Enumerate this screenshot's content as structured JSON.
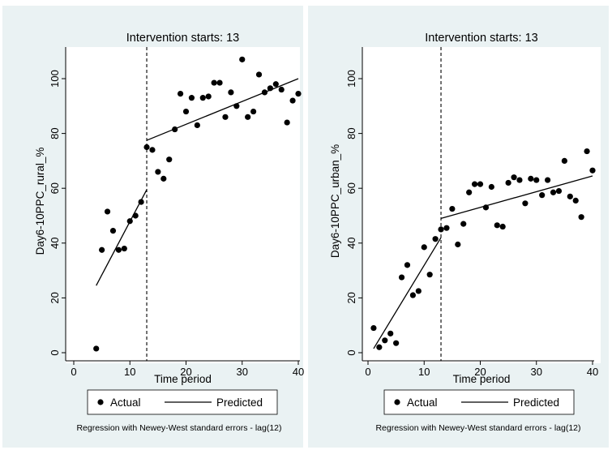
{
  "colors": {
    "background": "#eaf2f3",
    "plot_area": "#ffffff",
    "ink": "#000000"
  },
  "chart_data": [
    {
      "type": "scatter",
      "title": "Intervention starts: 13",
      "xlabel": "Time period",
      "ylabel": "Day6-10PPC_rural_%",
      "xlim": [
        0,
        40
      ],
      "ylim": [
        0,
        110
      ],
      "xticks": [
        0,
        10,
        20,
        30,
        40
      ],
      "yticks": [
        0,
        20,
        40,
        60,
        80,
        100
      ],
      "grid": false,
      "intervention_x": 13,
      "legend": {
        "placement": "bottom",
        "items": [
          "Actual",
          "Predicted"
        ]
      },
      "note": "Regression with Newey-West standard errors - lag(12)",
      "series": [
        {
          "name": "Actual",
          "kind": "points",
          "x": [
            4,
            5,
            6,
            7,
            8,
            9,
            10,
            11,
            12,
            13,
            14,
            15,
            16,
            17,
            18,
            19,
            20,
            21,
            22,
            23,
            24,
            25,
            26,
            27,
            28,
            29,
            30,
            31,
            32,
            33,
            34,
            35,
            36,
            37,
            38,
            39,
            40
          ],
          "y": [
            1.5,
            37.5,
            51.5,
            44.5,
            37.5,
            38,
            48,
            50,
            55,
            75,
            74,
            66,
            63.5,
            70.5,
            81.5,
            94.5,
            88,
            93,
            83,
            93,
            93.5,
            98.5,
            98.5,
            86,
            95,
            90,
            107,
            86,
            88,
            101.5,
            95,
            96.5,
            98,
            96,
            84,
            92,
            94.5
          ]
        },
        {
          "name": "Predicted",
          "kind": "segments",
          "segments": [
            {
              "x": [
                4,
                13
              ],
              "y": [
                24.5,
                59.5
              ]
            },
            {
              "x": [
                13,
                40
              ],
              "y": [
                77.5,
                100
              ]
            }
          ]
        }
      ]
    },
    {
      "type": "scatter",
      "title": "Intervention starts: 13",
      "xlabel": "Time period",
      "ylabel": "Day6-10PPC_urban_%",
      "xlim": [
        0,
        40
      ],
      "ylim": [
        0,
        110
      ],
      "xticks": [
        0,
        10,
        20,
        30,
        40
      ],
      "yticks": [
        0,
        20,
        40,
        60,
        80,
        100
      ],
      "grid": false,
      "intervention_x": 13,
      "legend": {
        "placement": "bottom",
        "items": [
          "Actual",
          "Predicted"
        ]
      },
      "note": "Regression with Newey-West standard errors - lag(12)",
      "series": [
        {
          "name": "Actual",
          "kind": "points",
          "x": [
            1,
            2,
            3,
            4,
            5,
            6,
            7,
            8,
            9,
            10,
            11,
            12,
            13,
            14,
            15,
            16,
            17,
            18,
            19,
            20,
            21,
            22,
            23,
            24,
            25,
            26,
            27,
            28,
            29,
            30,
            31,
            32,
            33,
            34,
            35,
            36,
            37,
            38,
            39,
            40
          ],
          "y": [
            9,
            2,
            4.5,
            7,
            3.5,
            27.5,
            32,
            21,
            22.5,
            38.5,
            28.5,
            41.5,
            45,
            45.5,
            52.5,
            39.5,
            47,
            58.5,
            61.5,
            61.5,
            53,
            60.5,
            46.5,
            46,
            62,
            64,
            63,
            54.5,
            63.5,
            63,
            57.5,
            63,
            58.5,
            59,
            70,
            57,
            55.5,
            49.5,
            73.5,
            66.5
          ]
        },
        {
          "name": "Predicted",
          "kind": "segments",
          "segments": [
            {
              "x": [
                1,
                13
              ],
              "y": [
                1.5,
                42
              ]
            },
            {
              "x": [
                13,
                40
              ],
              "y": [
                49,
                64.5
              ]
            }
          ]
        }
      ]
    }
  ]
}
